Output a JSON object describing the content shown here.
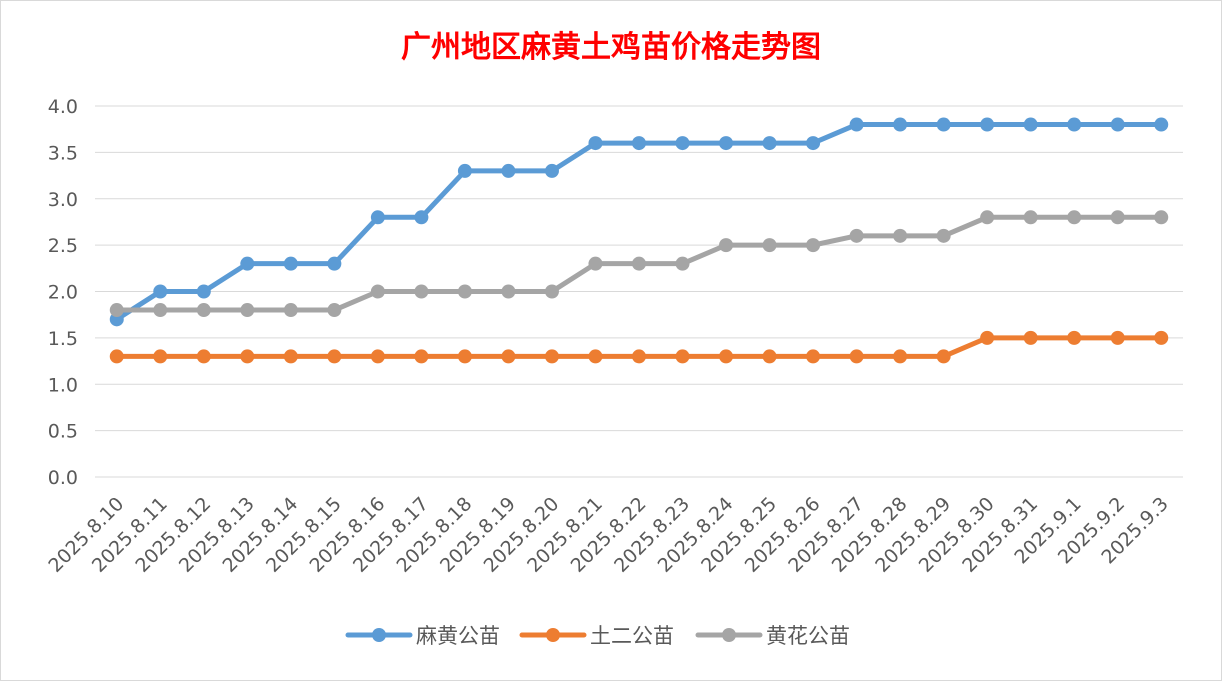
{
  "chart_data": {
    "type": "line",
    "title": "广州地区麻黄土鸡苗价格走势图",
    "xlabel": "",
    "ylabel": "",
    "ylim": [
      0,
      4.0
    ],
    "yticks": [
      "0.0",
      "0.5",
      "1.0",
      "1.5",
      "2.0",
      "2.5",
      "3.0",
      "3.5",
      "4.0"
    ],
    "grid": true,
    "legend_position": "bottom",
    "categories": [
      "2025.8.10",
      "2025.8.11",
      "2025.8.12",
      "2025.8.13",
      "2025.8.14",
      "2025.8.15",
      "2025.8.16",
      "2025.8.17",
      "2025.8.18",
      "2025.8.19",
      "2025.8.20",
      "2025.8.21",
      "2025.8.22",
      "2025.8.23",
      "2025.8.24",
      "2025.8.25",
      "2025.8.26",
      "2025.8.27",
      "2025.8.28",
      "2025.8.29",
      "2025.8.30",
      "2025.8.31",
      "2025.9.1",
      "2025.9.2",
      "2025.9.3"
    ],
    "series": [
      {
        "name": "麻黄公苗",
        "color": "#5b9bd5",
        "values": [
          1.7,
          2.0,
          2.0,
          2.3,
          2.3,
          2.3,
          2.8,
          2.8,
          3.3,
          3.3,
          3.3,
          3.6,
          3.6,
          3.6,
          3.6,
          3.6,
          3.6,
          3.8,
          3.8,
          3.8,
          3.8,
          3.8,
          3.8,
          3.8,
          3.8
        ]
      },
      {
        "name": "土二公苗",
        "color": "#ed7d31",
        "values": [
          1.3,
          1.3,
          1.3,
          1.3,
          1.3,
          1.3,
          1.3,
          1.3,
          1.3,
          1.3,
          1.3,
          1.3,
          1.3,
          1.3,
          1.3,
          1.3,
          1.3,
          1.3,
          1.3,
          1.3,
          1.5,
          1.5,
          1.5,
          1.5,
          1.5
        ]
      },
      {
        "name": "黄花公苗",
        "color": "#a5a5a5",
        "values": [
          1.8,
          1.8,
          1.8,
          1.8,
          1.8,
          1.8,
          2.0,
          2.0,
          2.0,
          2.0,
          2.0,
          2.3,
          2.3,
          2.3,
          2.5,
          2.5,
          2.5,
          2.6,
          2.6,
          2.6,
          2.8,
          2.8,
          2.8,
          2.8,
          2.8
        ]
      }
    ]
  }
}
